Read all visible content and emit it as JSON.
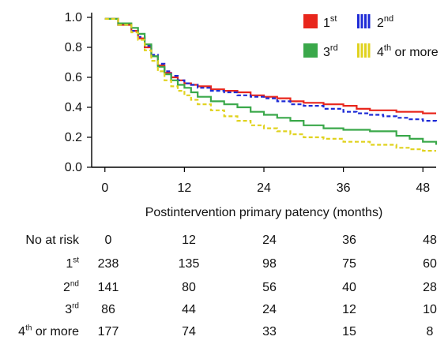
{
  "chart_data": {
    "type": "line",
    "xlabel": "Postintervention primary patency (months)",
    "ylabel": "",
    "xlim": [
      -2,
      50
    ],
    "ylim": [
      0,
      1.0
    ],
    "x_ticks": [
      0,
      12,
      24,
      36,
      48
    ],
    "y_ticks": [
      "0.0",
      "0.2",
      "0.4",
      "0.6",
      "0.8",
      "1.0"
    ],
    "legend_position": "top-right",
    "series": [
      {
        "name": "1st",
        "label_base": "1",
        "label_sup": "st",
        "color": "#e8261c",
        "style": "solid",
        "points": [
          [
            0,
            0.99
          ],
          [
            2,
            0.95
          ],
          [
            4,
            0.91
          ],
          [
            5,
            0.86
          ],
          [
            6,
            0.8
          ],
          [
            7,
            0.74
          ],
          [
            8,
            0.68
          ],
          [
            9,
            0.63
          ],
          [
            10,
            0.6
          ],
          [
            11,
            0.58
          ],
          [
            12,
            0.56
          ],
          [
            13,
            0.55
          ],
          [
            14,
            0.54
          ],
          [
            16,
            0.52
          ],
          [
            18,
            0.51
          ],
          [
            20,
            0.5
          ],
          [
            22,
            0.48
          ],
          [
            24,
            0.47
          ],
          [
            26,
            0.46
          ],
          [
            28,
            0.44
          ],
          [
            30,
            0.43
          ],
          [
            33,
            0.42
          ],
          [
            36,
            0.41
          ],
          [
            38,
            0.39
          ],
          [
            40,
            0.38
          ],
          [
            42,
            0.38
          ],
          [
            44,
            0.37
          ],
          [
            46,
            0.37
          ],
          [
            48,
            0.36
          ],
          [
            50,
            0.36
          ]
        ]
      },
      {
        "name": "2nd",
        "label_base": "2",
        "label_sup": "nd",
        "color": "#1e2bd6",
        "style": "dashed",
        "points": [
          [
            0,
            0.99
          ],
          [
            2,
            0.95
          ],
          [
            4,
            0.91
          ],
          [
            5,
            0.87
          ],
          [
            6,
            0.81
          ],
          [
            7,
            0.75
          ],
          [
            8,
            0.69
          ],
          [
            9,
            0.64
          ],
          [
            10,
            0.61
          ],
          [
            11,
            0.58
          ],
          [
            12,
            0.56
          ],
          [
            13,
            0.55
          ],
          [
            14,
            0.53
          ],
          [
            16,
            0.51
          ],
          [
            18,
            0.5
          ],
          [
            20,
            0.48
          ],
          [
            22,
            0.47
          ],
          [
            24,
            0.46
          ],
          [
            26,
            0.44
          ],
          [
            28,
            0.42
          ],
          [
            30,
            0.41
          ],
          [
            33,
            0.39
          ],
          [
            36,
            0.37
          ],
          [
            38,
            0.36
          ],
          [
            40,
            0.35
          ],
          [
            42,
            0.34
          ],
          [
            44,
            0.33
          ],
          [
            46,
            0.32
          ],
          [
            48,
            0.31
          ],
          [
            50,
            0.3
          ]
        ]
      },
      {
        "name": "3rd",
        "label_base": "3",
        "label_sup": "rd",
        "color": "#3aa84a",
        "style": "solid",
        "points": [
          [
            0,
            0.99
          ],
          [
            2,
            0.96
          ],
          [
            4,
            0.93
          ],
          [
            5,
            0.89
          ],
          [
            6,
            0.82
          ],
          [
            7,
            0.74
          ],
          [
            8,
            0.67
          ],
          [
            9,
            0.62
          ],
          [
            10,
            0.58
          ],
          [
            11,
            0.55
          ],
          [
            12,
            0.53
          ],
          [
            13,
            0.5
          ],
          [
            14,
            0.47
          ],
          [
            16,
            0.44
          ],
          [
            18,
            0.42
          ],
          [
            20,
            0.4
          ],
          [
            22,
            0.37
          ],
          [
            24,
            0.35
          ],
          [
            26,
            0.33
          ],
          [
            28,
            0.31
          ],
          [
            30,
            0.28
          ],
          [
            33,
            0.26
          ],
          [
            36,
            0.25
          ],
          [
            40,
            0.24
          ],
          [
            44,
            0.21
          ],
          [
            46,
            0.19
          ],
          [
            48,
            0.17
          ],
          [
            50,
            0.15
          ]
        ]
      },
      {
        "name": "4th or more",
        "label_base": "4",
        "label_sup": "th",
        "label_rest": " or more",
        "color": "#e0d21e",
        "style": "dashed",
        "points": [
          [
            0,
            0.99
          ],
          [
            2,
            0.95
          ],
          [
            4,
            0.9
          ],
          [
            5,
            0.85
          ],
          [
            6,
            0.78
          ],
          [
            7,
            0.71
          ],
          [
            8,
            0.64
          ],
          [
            9,
            0.58
          ],
          [
            10,
            0.54
          ],
          [
            11,
            0.51
          ],
          [
            12,
            0.48
          ],
          [
            13,
            0.45
          ],
          [
            14,
            0.42
          ],
          [
            16,
            0.38
          ],
          [
            18,
            0.34
          ],
          [
            20,
            0.31
          ],
          [
            22,
            0.28
          ],
          [
            24,
            0.26
          ],
          [
            26,
            0.24
          ],
          [
            28,
            0.22
          ],
          [
            30,
            0.2
          ],
          [
            33,
            0.19
          ],
          [
            36,
            0.17
          ],
          [
            40,
            0.15
          ],
          [
            44,
            0.13
          ],
          [
            46,
            0.12
          ],
          [
            48,
            0.11
          ],
          [
            50,
            0.11
          ]
        ]
      }
    ]
  },
  "risk_table": {
    "header": "No at risk",
    "times": [
      "0",
      "12",
      "24",
      "36",
      "48"
    ],
    "rows": [
      {
        "label_base": "1",
        "label_sup": "st",
        "label_rest": "",
        "values": [
          "238",
          "135",
          "98",
          "75",
          "60"
        ]
      },
      {
        "label_base": "2",
        "label_sup": "nd",
        "label_rest": "",
        "values": [
          "141",
          "80",
          "56",
          "40",
          "28"
        ]
      },
      {
        "label_base": "3",
        "label_sup": "rd",
        "label_rest": "",
        "values": [
          "86",
          "44",
          "24",
          "12",
          "10"
        ]
      },
      {
        "label_base": "4",
        "label_sup": "th",
        "label_rest": " or more",
        "values": [
          "177",
          "74",
          "33",
          "15",
          "8"
        ]
      }
    ]
  }
}
